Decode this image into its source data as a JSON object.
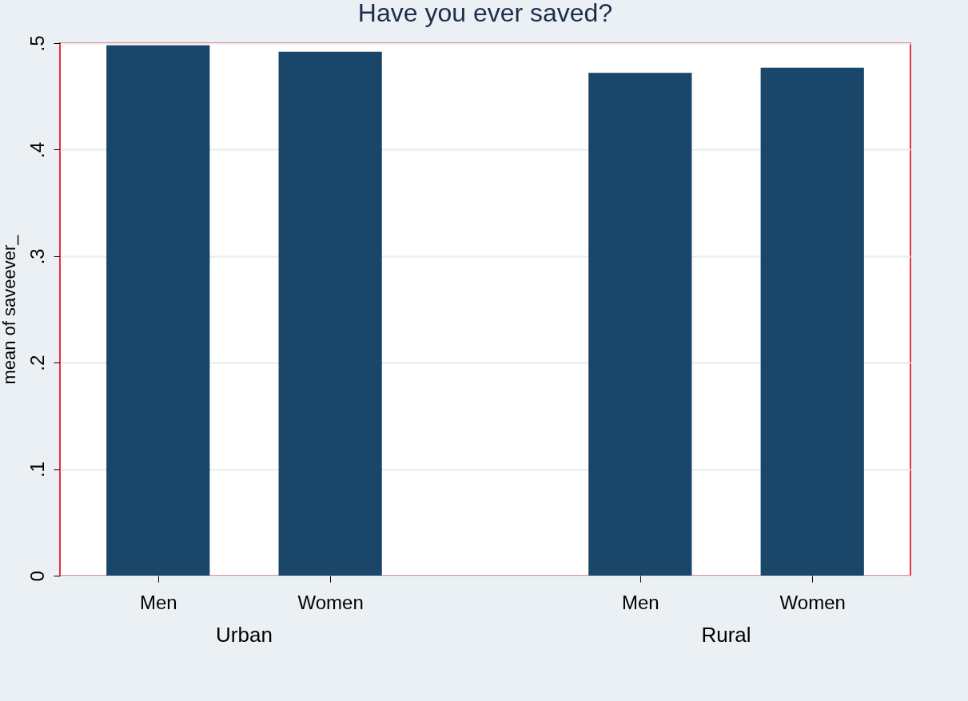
{
  "chart_data": {
    "type": "bar",
    "title": "Have you ever saved?",
    "ylabel": "mean of saveever_",
    "categories": [
      "Men",
      "Women",
      "Men",
      "Women"
    ],
    "values": [
      0.498,
      0.492,
      0.472,
      0.477
    ],
    "color": "#1a4669",
    "ylim": [
      0,
      0.5
    ],
    "yticks": [
      0,
      {
        "value": 0.1,
        "label": ".1"
      },
      {
        "value": 0.2,
        "label": ".2"
      },
      {
        "value": 0.3,
        "label": ".3"
      },
      {
        "value": 0.4,
        "label": ".4"
      },
      {
        "value": 0.5,
        "label": ".5"
      }
    ],
    "grid": "y",
    "annotations": [
      "Urban",
      "Rural"
    ]
  }
}
